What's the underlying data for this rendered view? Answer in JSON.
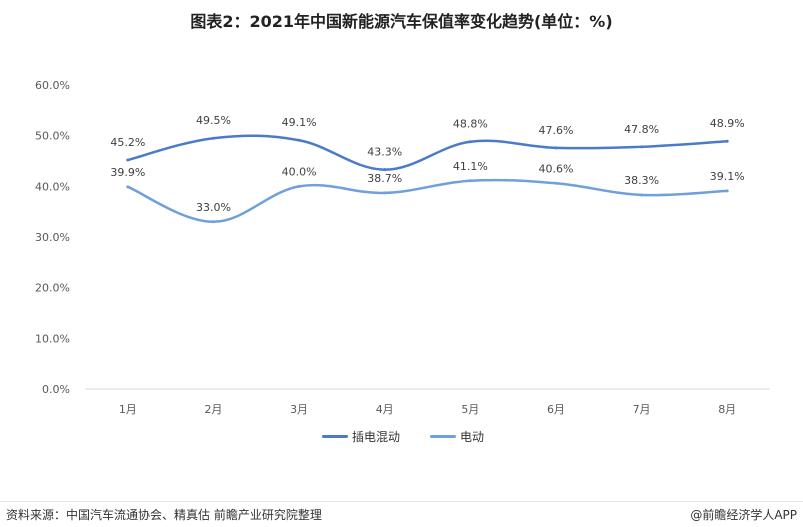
{
  "title": "图表2：2021年中国新能源汽车保值率变化趋势(单位：%)",
  "footer": {
    "source": "资料来源：中国汽车流通协会、精真估 前瞻产业研究院整理",
    "credit": "@前瞻经济学人APP"
  },
  "chart_data": {
    "type": "line",
    "categories": [
      "1月",
      "2月",
      "3月",
      "4月",
      "5月",
      "6月",
      "7月",
      "8月"
    ],
    "yticks": [
      "0.0%",
      "10.0%",
      "20.0%",
      "30.0%",
      "40.0%",
      "50.0%",
      "60.0%"
    ],
    "ylim": [
      0,
      60
    ],
    "series": [
      {
        "name": "插电混动",
        "color": "#4a7bc8",
        "values": [
          45.2,
          49.5,
          49.1,
          43.3,
          48.8,
          47.6,
          47.8,
          48.9
        ],
        "labels": [
          "45.2%",
          "49.5%",
          "49.1%",
          "43.3%",
          "48.8%",
          "47.6%",
          "47.8%",
          "48.9%"
        ]
      },
      {
        "name": "电动",
        "color": "#6fa0dc",
        "values": [
          39.9,
          33.0,
          40.0,
          38.7,
          41.1,
          40.6,
          38.3,
          39.1
        ],
        "labels": [
          "39.9%",
          "33.0%",
          "40.0%",
          "38.7%",
          "41.1%",
          "40.6%",
          "38.3%",
          "39.1%"
        ]
      }
    ],
    "grid": false,
    "legend": "bottom-center"
  }
}
